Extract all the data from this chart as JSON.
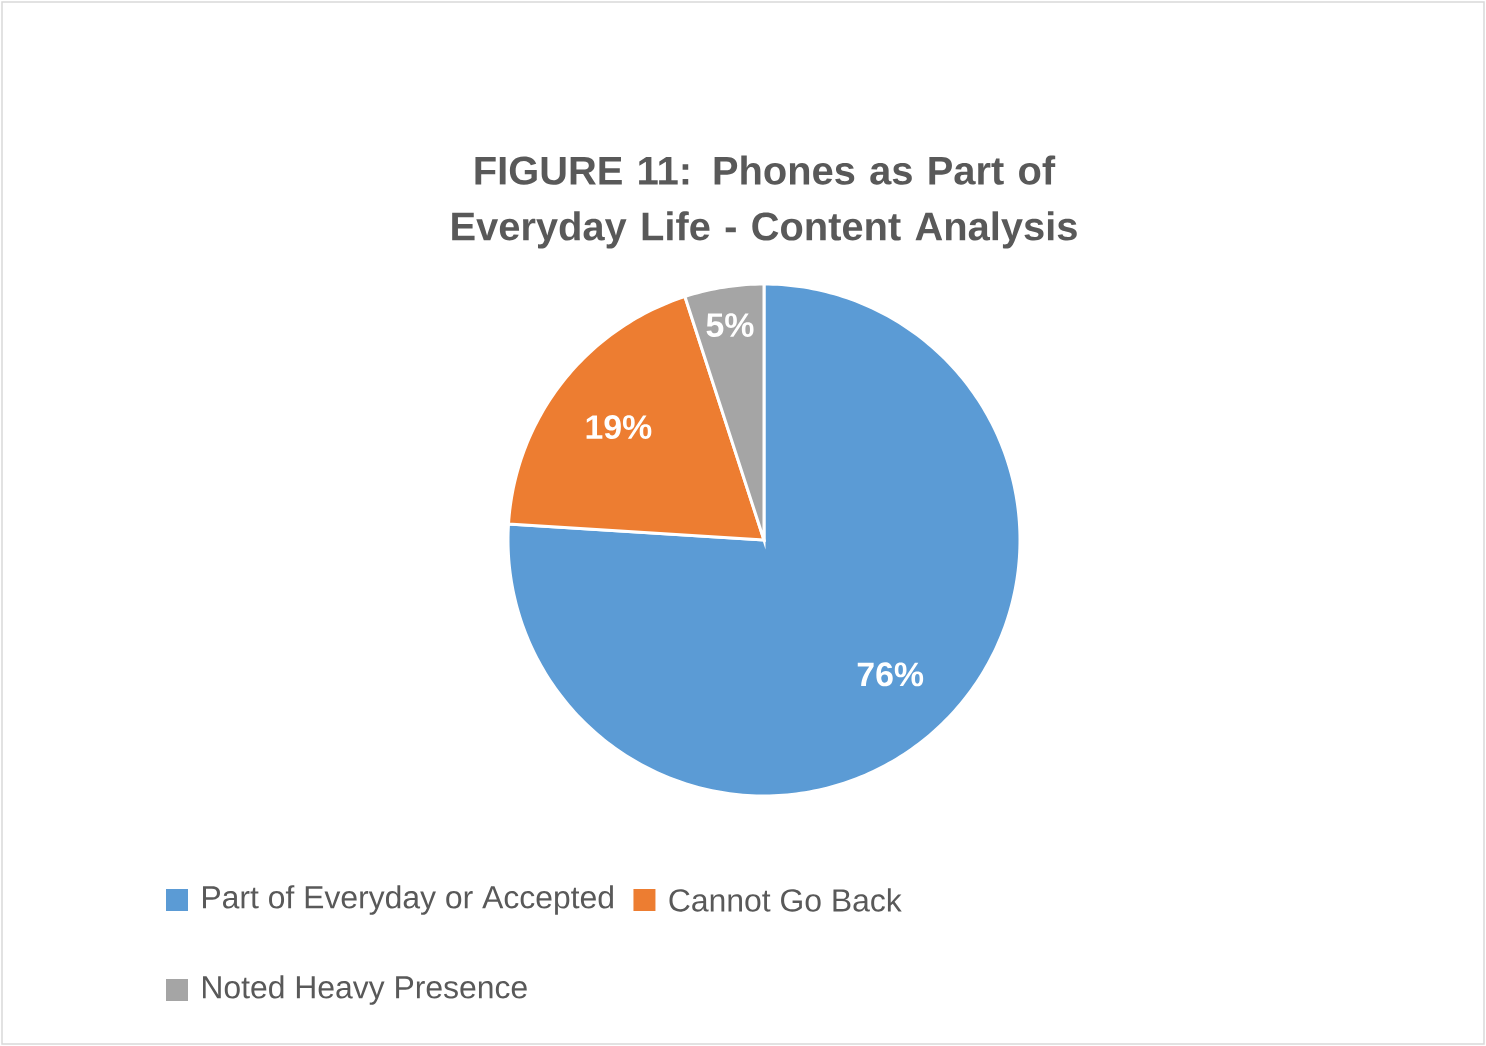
{
  "chart_data": {
    "type": "pie",
    "title": "FIGURE 11: Phones as Part of Everyday Life - Content Analysis",
    "categories": [
      "Part of Everyday or Accepted",
      "Cannot Go Back",
      "Noted Heavy Presence"
    ],
    "values": [
      76,
      19,
      5
    ],
    "value_labels": [
      "76%",
      "19%",
      "5%"
    ],
    "colors": [
      "#5b9bd5",
      "#ed7d31",
      "#a5a5a5"
    ],
    "legend": "bottom"
  }
}
